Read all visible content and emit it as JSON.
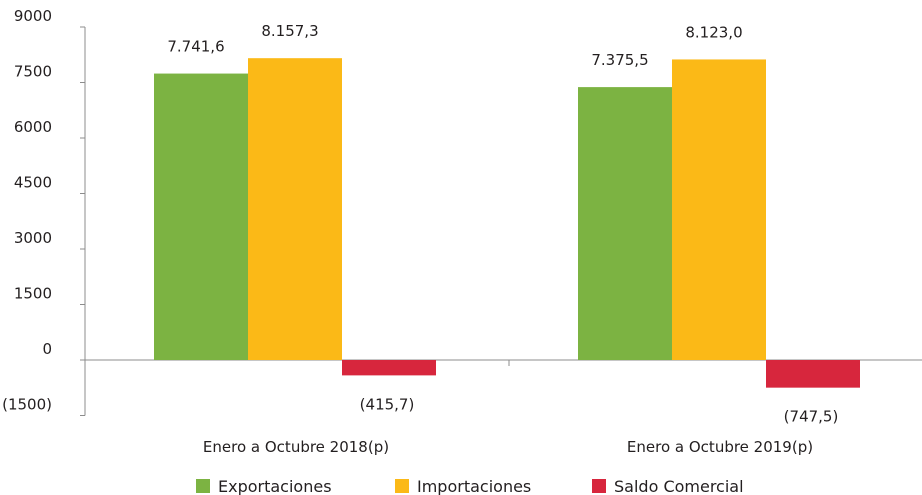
{
  "chart_data": {
    "type": "bar",
    "title": "",
    "xlabel": "",
    "ylabel": "",
    "categories": [
      "Enero a Octubre 2018(p)",
      "Enero a Octubre 2019(p)"
    ],
    "series": [
      {
        "name": "Exportaciones",
        "color": "#7cb342",
        "values": [
          7741.6,
          7375.5
        ],
        "labels": [
          "7.741,6",
          "7.375,5"
        ]
      },
      {
        "name": "Importaciones",
        "color": "#fbb917",
        "values": [
          8157.3,
          8123.0
        ],
        "labels": [
          "8.157,3",
          "8.123,0"
        ]
      },
      {
        "name": "Saldo Comercial",
        "color": "#d7263d",
        "values": [
          -415.7,
          -747.5
        ],
        "labels": [
          "(415,7)",
          "(747,5)"
        ]
      }
    ],
    "yticks": [
      9000,
      7500,
      6000,
      4500,
      3000,
      1500,
      0,
      -1500
    ],
    "ytick_labels": [
      "9000",
      "7500",
      "6000",
      "4500",
      "3000",
      "1500",
      "0",
      "(1500)"
    ],
    "ylim": [
      -1500,
      9000
    ],
    "grid": false,
    "legend": "bottom-center"
  }
}
